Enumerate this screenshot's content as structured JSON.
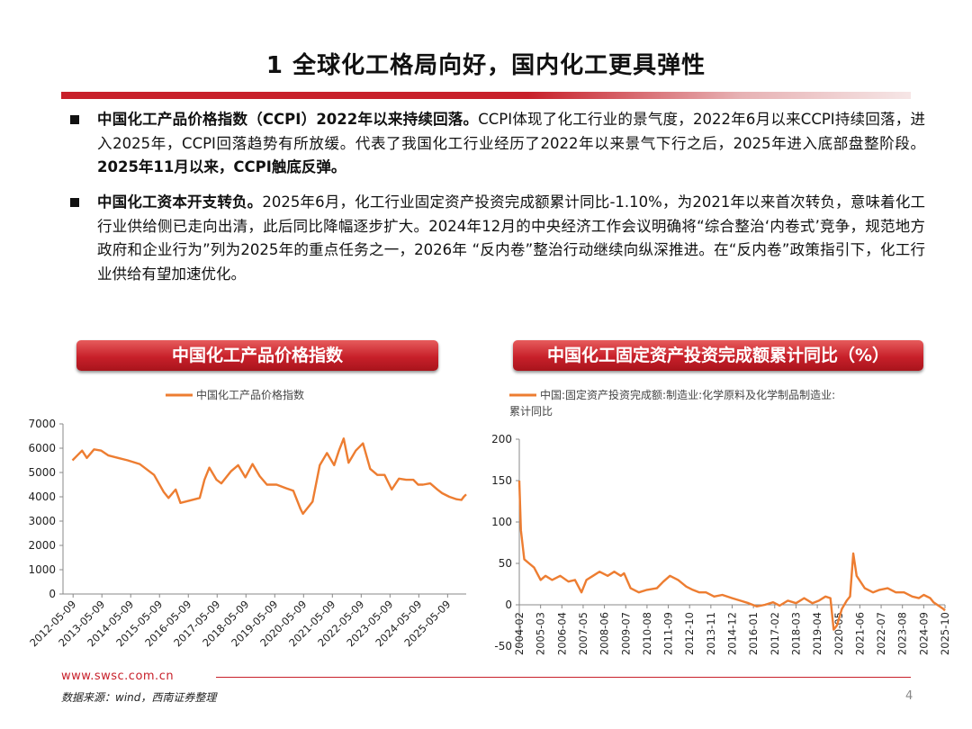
{
  "page": {
    "title": "1 全球化工格局向好，国内化工更具弹性",
    "url": "www.swsc.com.cn",
    "source": "数据来源：wind，西南证券整理",
    "page_number": "4"
  },
  "bullets": [
    {
      "bold": "中国化工产品价格指数（CCPI）2022年以来持续回落。",
      "text": "CCPI体现了化工行业的景气度，2022年6月以来CCPI持续回落，进入2025年，CCPI回落趋势有所放缓。代表了我国化工行业经历了2022年以来景气下行之后，2025年进入底部盘整阶段。",
      "bold_end": "2025年11月以来，CCPI触底反弹。"
    },
    {
      "bold": "中国化工资本开支转负。",
      "text": "2025年6月，化工行业固定资产投资完成额累计同比-1.10%，为2021年以来首次转负，意味着化工行业供给侧已走向出清，此后同比降幅逐步扩大。2024年12月的中央经济工作会议明确将“综合整治‘内卷式’竞争，规范地方政府和企业行为”列为2025年的重点任务之一，2026年 “反内卷”整治行动继续向纵深推进。在“反内卷”政策指引下，化工行业供给有望加速优化。",
      "bold_end": ""
    }
  ],
  "colors": {
    "accent": "#c8202a",
    "series": "#ed7d31"
  },
  "chart_data": [
    {
      "type": "line",
      "title": "中国化工产品价格指数",
      "legend": "中国化工产品价格指数",
      "series": [
        {
          "name": "中国化工产品价格指数",
          "x": [
            "2012-05",
            "2012-09",
            "2012-11",
            "2013-02",
            "2013-05",
            "2013-08",
            "2013-12",
            "2014-04",
            "2014-09",
            "2015-01",
            "2015-03",
            "2015-07",
            "2015-09",
            "2015-12",
            "2016-02",
            "2016-06",
            "2016-10",
            "2016-12",
            "2017-02",
            "2017-05",
            "2017-07",
            "2017-11",
            "2018-02",
            "2018-05",
            "2018-08",
            "2018-11",
            "2019-02",
            "2019-06",
            "2019-10",
            "2020-01",
            "2020-04",
            "2020-05",
            "2020-09",
            "2020-12",
            "2021-03",
            "2021-06",
            "2021-08",
            "2021-10",
            "2021-12",
            "2022-03",
            "2022-05",
            "2022-06",
            "2022-09",
            "2022-12",
            "2023-03",
            "2023-06",
            "2023-09",
            "2023-12",
            "2024-03",
            "2024-05",
            "2024-07",
            "2024-10",
            "2025-01",
            "2025-03",
            "2025-06",
            "2025-09",
            "2025-11",
            "2025-12",
            "2026-01"
          ],
          "values": [
            5500,
            5900,
            5600,
            5950,
            5900,
            5700,
            5600,
            5500,
            5350,
            5050,
            4900,
            4200,
            3950,
            4300,
            3750,
            3850,
            3950,
            4700,
            5200,
            4700,
            4550,
            5050,
            5300,
            4800,
            5350,
            4850,
            4500,
            4500,
            4350,
            4250,
            3500,
            3300,
            3800,
            5300,
            5800,
            5300,
            5900,
            6400,
            5400,
            5900,
            6100,
            6200,
            5150,
            4900,
            4900,
            4300,
            4750,
            4700,
            4700,
            4500,
            4500,
            4550,
            4300,
            4150,
            4000,
            3900,
            3870,
            4000,
            4100
          ]
        }
      ],
      "xticks": [
        "2012-05-09",
        "2013-05-09",
        "2014-05-09",
        "2015-05-09",
        "2016-05-09",
        "2017-05-09",
        "2018-05-09",
        "2019-05-09",
        "2020-05-09",
        "2021-05-09",
        "2022-05-09",
        "2023-05-09",
        "2024-05-09",
        "2025-05-09"
      ],
      "yticks": [
        0,
        1000,
        2000,
        3000,
        4000,
        5000,
        6000,
        7000
      ],
      "ylim": [
        0,
        7000
      ],
      "grid": false,
      "legend_position": "top"
    },
    {
      "type": "line",
      "title": "中国化工固定资产投资完成额累计同比（%）",
      "legend": "中国:固定资产投资完成额:制造业:化学原料及化学制品制造业:累计同比",
      "series": [
        {
          "name": "中国:固定资产投资完成额:制造业:化学原料及化学制品制造业:累计同比",
          "x": [
            "2004-02",
            "2004-03",
            "2004-05",
            "2004-08",
            "2004-11",
            "2005-03",
            "2005-06",
            "2005-10",
            "2006-03",
            "2006-08",
            "2006-12",
            "2007-04",
            "2007-07",
            "2007-11",
            "2008-03",
            "2008-08",
            "2008-12",
            "2009-04",
            "2009-06",
            "2009-10",
            "2010-03",
            "2010-08",
            "2011-02",
            "2011-06",
            "2011-10",
            "2012-03",
            "2012-08",
            "2012-12",
            "2013-04",
            "2013-08",
            "2014-01",
            "2014-06",
            "2014-12",
            "2015-05",
            "2015-10",
            "2016-03",
            "2016-08",
            "2017-01",
            "2017-05",
            "2017-10",
            "2018-03",
            "2018-08",
            "2019-01",
            "2019-05",
            "2019-09",
            "2019-12",
            "2020-02",
            "2020-04",
            "2020-07",
            "2020-10",
            "2020-12",
            "2021-02",
            "2021-04",
            "2021-09",
            "2022-02",
            "2022-06",
            "2022-11",
            "2023-04",
            "2023-09",
            "2024-02",
            "2024-06",
            "2024-09",
            "2025-01",
            "2025-03",
            "2025-06",
            "2025-09",
            "2025-10"
          ],
          "values": [
            150,
            90,
            55,
            50,
            45,
            30,
            35,
            30,
            35,
            28,
            30,
            15,
            30,
            35,
            40,
            35,
            40,
            35,
            38,
            20,
            15,
            18,
            20,
            28,
            35,
            30,
            22,
            18,
            15,
            15,
            10,
            12,
            8,
            5,
            2,
            -2,
            0,
            3,
            -1,
            5,
            2,
            8,
            2,
            5,
            10,
            8,
            -30,
            -25,
            -5,
            5,
            10,
            62,
            35,
            20,
            15,
            18,
            20,
            15,
            15,
            10,
            8,
            12,
            8,
            3,
            -1,
            -5,
            -7
          ]
        }
      ],
      "xticks": [
        "2004-02",
        "2005-03",
        "2006-04",
        "2007-05",
        "2008-06",
        "2009-07",
        "2010-08",
        "2011-09",
        "2012-10",
        "2013-11",
        "2014-12",
        "2016-01",
        "2017-02",
        "2018-03",
        "2019-04",
        "2020-05",
        "2021-06",
        "2022-07",
        "2023-08",
        "2024-09",
        "2025-10"
      ],
      "yticks": [
        -50,
        0,
        50,
        100,
        150,
        200
      ],
      "ylim": [
        -50,
        200
      ],
      "grid": false,
      "legend_position": "top"
    }
  ]
}
